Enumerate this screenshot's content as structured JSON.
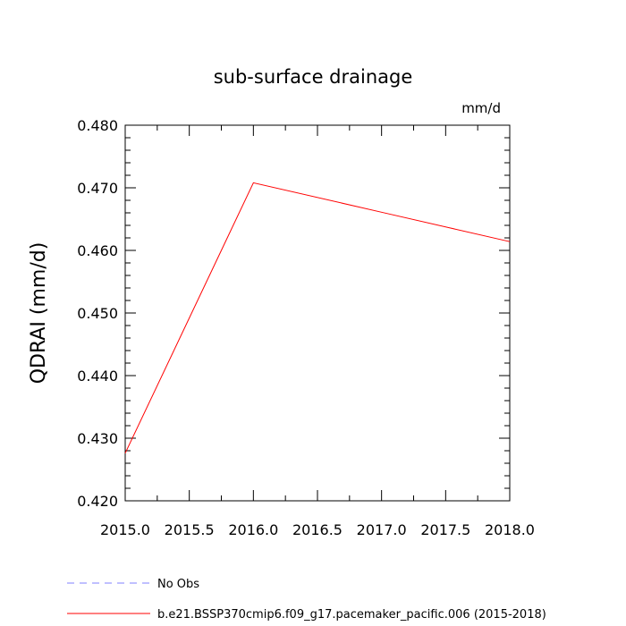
{
  "chart_data": {
    "type": "line",
    "title": "sub-surface drainage",
    "units_label": "mm/d",
    "ylabel": "QDRAI  (mm/d)",
    "xlabel": "",
    "xlim": [
      2015.0,
      2018.0
    ],
    "ylim": [
      0.42,
      0.48
    ],
    "x_ticks": [
      2015.0,
      2015.5,
      2016.0,
      2016.5,
      2017.0,
      2017.5,
      2018.0
    ],
    "x_tick_labels": [
      "2015.0",
      "2015.5",
      "2016.0",
      "2016.5",
      "2017.0",
      "2017.5",
      "2018.0"
    ],
    "y_ticks": [
      0.42,
      0.43,
      0.44,
      0.45,
      0.46,
      0.47,
      0.48
    ],
    "y_tick_labels": [
      "0.420",
      "0.430",
      "0.440",
      "0.450",
      "0.460",
      "0.470",
      "0.480"
    ],
    "grid": false,
    "legend_position": "bottom",
    "series": [
      {
        "name": "No Obs",
        "color": "#8080ff",
        "style": "dashed",
        "x": [],
        "values": []
      },
      {
        "name": "b.e21.BSSP370cmip6.f09_g17.pacemaker_pacific.006 (2015-2018)",
        "color": "#ff0000",
        "style": "solid",
        "x": [
          2015,
          2016,
          2017,
          2018
        ],
        "values": [
          0.4276,
          0.4708,
          0.4661,
          0.4614
        ]
      }
    ]
  }
}
